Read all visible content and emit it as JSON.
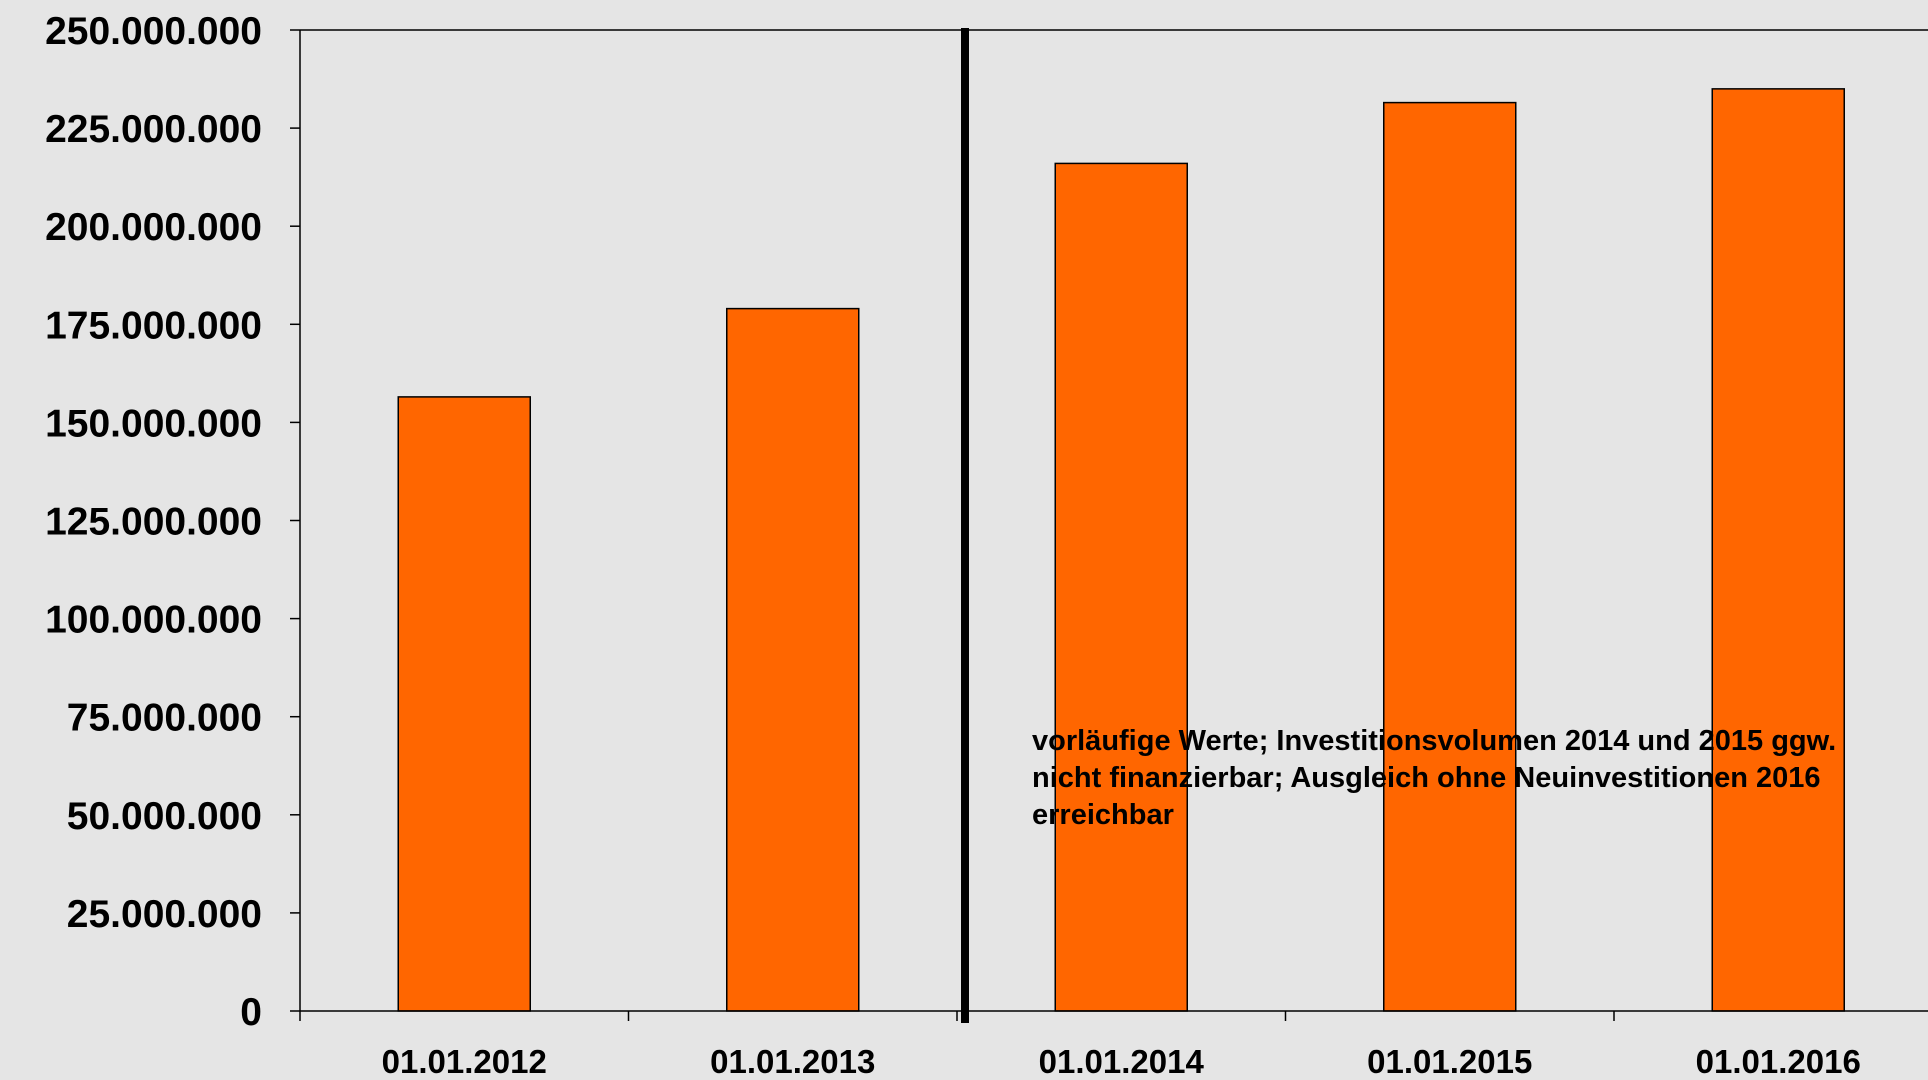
{
  "chart_data": {
    "type": "bar",
    "categories": [
      "01.01.2012",
      "01.01.2013",
      "01.01.2014",
      "01.01.2015",
      "01.01.2016"
    ],
    "values": [
      156500000,
      179000000,
      216000000,
      231500000,
      235000000
    ],
    "ylim": [
      0,
      250000000
    ],
    "yticks": [
      0,
      25000000,
      50000000,
      75000000,
      100000000,
      125000000,
      150000000,
      175000000,
      200000000,
      225000000,
      250000000
    ],
    "ytick_labels": [
      "0",
      "25.000.000",
      "50.000.000",
      "75.000.000",
      "100.000.000",
      "125.000.000",
      "150.000.000",
      "175.000.000",
      "200.000.000",
      "225.000.000",
      "250.000.000"
    ],
    "title": "",
    "xlabel": "",
    "ylabel": "",
    "grid": false,
    "bar_color": "#ff6600",
    "separator_after_category": 1,
    "annotation_lines": [
      "vorläufige Werte; Investitionsvolumen 2014 und 2015 ggw.",
      "nicht finanzierbar; Ausgleich ohne Neuinvestitionen 2016",
      "erreichbar"
    ]
  }
}
